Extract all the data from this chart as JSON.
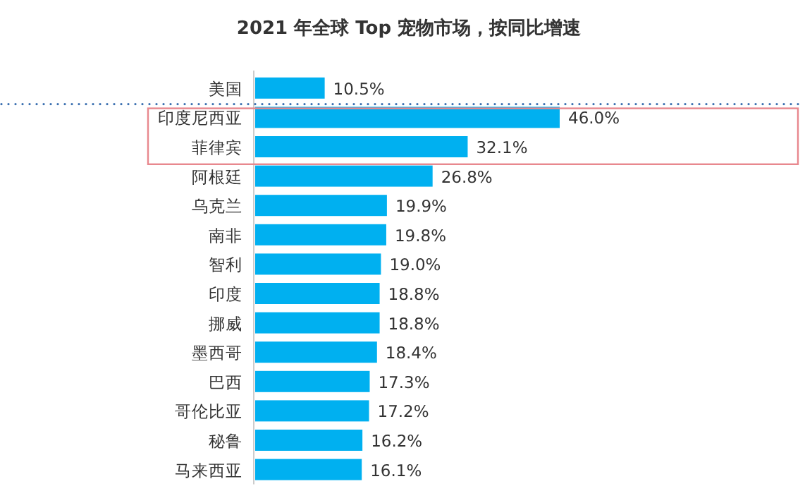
{
  "chart_data": {
    "type": "bar",
    "orientation": "horizontal",
    "title": "2021 年全球 Top 宠物市场，按同比增速",
    "categories": [
      "美国",
      "印度尼西亚",
      "菲律宾",
      "阿根廷",
      "乌克兰",
      "南非",
      "智利",
      "印度",
      "挪威",
      "墨西哥",
      "巴西",
      "哥伦比亚",
      "秘鲁",
      "马来西亚"
    ],
    "values": [
      10.5,
      46.0,
      32.1,
      26.8,
      19.9,
      19.8,
      19.0,
      18.8,
      18.8,
      18.4,
      17.3,
      17.2,
      16.2,
      16.1
    ],
    "value_labels": [
      "10.5%",
      "46.0%",
      "32.1%",
      "26.8%",
      "19.9%",
      "19.8%",
      "19.0%",
      "18.8%",
      "18.8%",
      "18.4%",
      "17.3%",
      "17.2%",
      "16.2%",
      "16.1%"
    ],
    "color": "#00b0f0"
  }
}
